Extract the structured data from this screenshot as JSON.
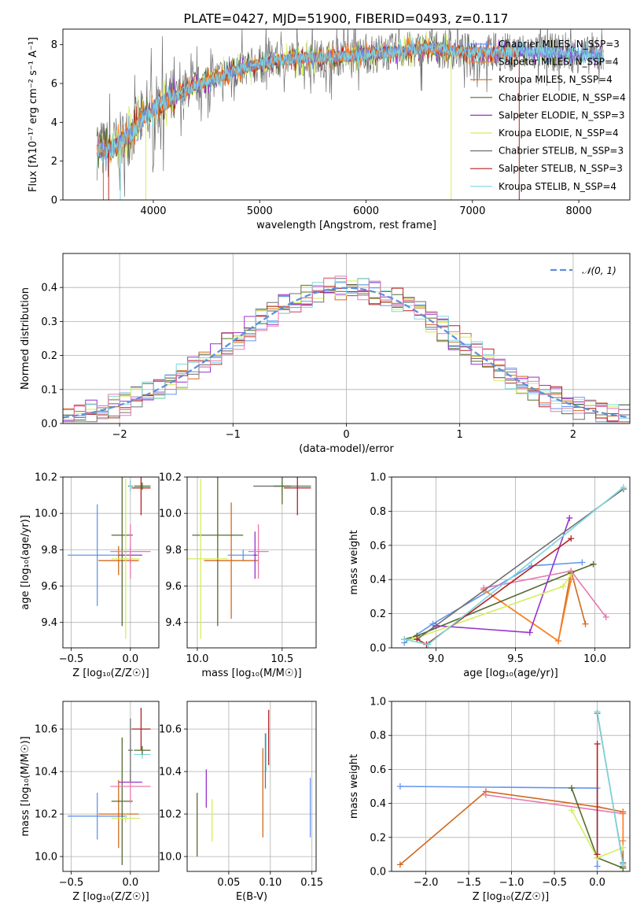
{
  "title": "PLATE=0427, MJD=51900, FIBERID=0493, z=0.117",
  "colors": {
    "chabrier_miles": "#6495ED",
    "salpeter_miles": "#FF7F24",
    "kroupa_miles": "#D2691E",
    "chabrier_elodie": "#556B2F",
    "salpeter_elodie": "#9932CC",
    "kroupa_elodie": "#D4EE5E",
    "chabrier_stelib": "#707070",
    "salpeter_stelib": "#B22222",
    "kroupa_stelib": "#7FD7DF",
    "extra_pink": "#E879B0",
    "normal": "#5B8FDB",
    "grid": "#B0B0B0"
  },
  "chart_data": [
    {
      "type": "line",
      "xlabel": "wavelength [Angstrom, rest frame]",
      "ylabel": "Flux [fλ10⁻¹⁷ erg cm⁻² s⁻¹ A⁻¹]",
      "xlim": [
        3150,
        8480
      ],
      "ylim": [
        0,
        8.8
      ],
      "xticks": [
        "4000",
        "5000",
        "6000",
        "7000",
        "8000"
      ],
      "yticks": [
        "0",
        "2",
        "4",
        "6",
        "8"
      ],
      "grid": false,
      "legend_position": "top-right",
      "legend": [
        "Chabrier MILES, N_SSP=3",
        "Salpeter MILES, N_SSP=4",
        "Kroupa MILES, N_SSP=4",
        "Chabrier ELODIE, N_SSP=4",
        "Salpeter ELODIE, N_SSP=3",
        "Kroupa ELODIE, N_SSP=4",
        "Chabrier STELIB, N_SSP=3",
        "Salpeter STELIB, N_SSP=3",
        "Kroupa STELIB, N_SSP=4"
      ],
      "spectrum_x": [
        3470,
        3600,
        3700,
        3800,
        3900,
        4000,
        4200,
        4400,
        4600,
        4800,
        5000,
        5200,
        5400,
        5600,
        5800,
        6000,
        6200,
        6400,
        6600,
        6800,
        7000,
        7200,
        7400,
        7600,
        7800,
        8000,
        8230
      ],
      "spectrum_y": [
        2.6,
        2.6,
        3.0,
        3.5,
        4.2,
        4.7,
        5.3,
        5.9,
        6.3,
        6.7,
        7.0,
        7.2,
        7.3,
        7.3,
        7.4,
        7.5,
        7.6,
        7.7,
        7.8,
        7.7,
        7.6,
        7.6,
        7.65,
        7.6,
        7.6,
        7.5,
        7.4
      ]
    },
    {
      "type": "histogram",
      "xlabel": "(data-model)/error",
      "ylabel": "Normed distribution",
      "xlim": [
        -2.5,
        2.5
      ],
      "ylim": [
        0,
        0.5
      ],
      "xticks": [
        "−2",
        "−1",
        "0",
        "1",
        "2"
      ],
      "yticks": [
        "0.0",
        "0.1",
        "0.2",
        "0.3",
        "0.4"
      ],
      "grid": true,
      "legend": [
        "𝒩(0, 1)"
      ],
      "legend_position": "top-right",
      "bin_width": 0.1,
      "bin_start": -2.5
    },
    {
      "type": "scatter",
      "xlabel": "Z [log₁₀(Z/Z☉)]",
      "ylabel": "age  [log₁₀(age/yr)]",
      "xlim": [
        -0.57,
        0.24
      ],
      "ylim": [
        9.26,
        10.2
      ],
      "xticks": [
        "−0.5",
        "0.0"
      ],
      "yticks": [
        "9.4",
        "9.6",
        "9.8",
        "10.0",
        "10.2"
      ],
      "grid": true,
      "points": [
        {
          "c": "chabrier_miles",
          "x": -0.28,
          "y": 9.77,
          "xerr": 0.25,
          "yerr": 0.28
        },
        {
          "c": "kroupa_miles",
          "x": -0.1,
          "y": 9.74,
          "xerr": 0.17,
          "yerr": 0.08
        },
        {
          "c": "chabrier_elodie",
          "x": -0.07,
          "y": 9.88,
          "xerr": 0.09,
          "yerr": 0.5
        },
        {
          "c": "salpeter_elodie",
          "x": 0.0,
          "y": 9.77,
          "xerr": 0.1,
          "yerr": 0.05
        },
        {
          "c": "kroupa_elodie",
          "x": -0.04,
          "y": 9.75,
          "xerr": 0.12,
          "yerr": 0.44
        },
        {
          "c": "extra_pink",
          "x": 0.0,
          "y": 9.79,
          "xerr": 0.17,
          "yerr": 0.15
        },
        {
          "c": "chabrier_stelib",
          "x": 0.0,
          "y": 10.15,
          "xerr": 0.02,
          "yerr": 0.03
        },
        {
          "c": "salpeter_stelib",
          "x": 0.09,
          "y": 10.14,
          "xerr": 0.08,
          "yerr": 0.15
        },
        {
          "c": "kroupa_stelib",
          "x": 0.0,
          "y": 10.15,
          "xerr": 0.01,
          "yerr": 0.03
        },
        {
          "c": "chabrier_elodie",
          "x": 0.1,
          "y": 10.15,
          "xerr": 0.07,
          "yerr": 0.02
        }
      ]
    },
    {
      "type": "scatter",
      "xlabel": "mass [log₁₀(M/M☉)]",
      "ylabel": "",
      "xlim": [
        9.94,
        10.7
      ],
      "ylim": [
        9.26,
        10.2
      ],
      "xticks": [
        "10.0",
        "10.5"
      ],
      "yticks": [
        "9.4",
        "9.6",
        "9.8",
        "10.0",
        "10.2"
      ],
      "grid": true,
      "points": [
        {
          "c": "chabrier_miles",
          "x": 10.27,
          "y": 9.77,
          "xerr": 0.09,
          "yerr": 0.03
        },
        {
          "c": "kroupa_miles",
          "x": 10.2,
          "y": 9.74,
          "xerr": 0.16,
          "yerr": 0.32
        },
        {
          "c": "chabrier_elodie",
          "x": 10.12,
          "y": 9.88,
          "xerr": 0.15,
          "yerr": 0.5
        },
        {
          "c": "salpeter_elodie",
          "x": 10.34,
          "y": 9.77,
          "xerr": 0.01,
          "yerr": 0.13
        },
        {
          "c": "kroupa_elodie",
          "x": 10.02,
          "y": 9.75,
          "xerr": 0.16,
          "yerr": 0.44
        },
        {
          "c": "extra_pink",
          "x": 10.36,
          "y": 9.79,
          "xerr": 0.06,
          "yerr": 0.15
        },
        {
          "c": "chabrier_stelib",
          "x": 10.5,
          "y": 10.15,
          "xerr": 0.17,
          "yerr": 0.02
        },
        {
          "c": "salpeter_stelib",
          "x": 10.59,
          "y": 10.14,
          "xerr": 0.08,
          "yerr": 0.15
        },
        {
          "c": "kroupa_stelib",
          "x": 10.5,
          "y": 10.15,
          "xerr": 0.02,
          "yerr": 0.04
        },
        {
          "c": "chabrier_elodie",
          "x": 10.5,
          "y": 10.15,
          "xerr": 0.05,
          "yerr": 0.1
        }
      ]
    },
    {
      "type": "line",
      "xlabel": "age  [log₁₀(age/yr)]",
      "ylabel": "mass weight",
      "xlim": [
        8.72,
        10.22
      ],
      "ylim": [
        0,
        1
      ],
      "xticks": [
        "9.0",
        "9.5",
        "10.0"
      ],
      "yticks": [
        "0.0",
        "0.2",
        "0.4",
        "0.6",
        "0.8",
        "1.0"
      ],
      "grid": true,
      "series": [
        {
          "c": "chabrier_miles",
          "x": [
            8.8,
            8.98,
            9.6,
            9.92
          ],
          "y": [
            0.03,
            0.14,
            0.48,
            0.5
          ]
        },
        {
          "c": "kroupa_miles",
          "x": [
            9.3,
            9.77,
            9.85,
            9.94
          ],
          "y": [
            0.34,
            0.04,
            0.45,
            0.14
          ]
        },
        {
          "c": "salpeter_miles",
          "x": [
            9.3,
            9.77,
            9.85
          ],
          "y": [
            0.34,
            0.04,
            0.4
          ]
        },
        {
          "c": "chabrier_elodie",
          "x": [
            8.8,
            8.88,
            9.85,
            9.99
          ],
          "y": [
            0.05,
            0.07,
            0.44,
            0.49
          ]
        },
        {
          "c": "salpeter_elodie",
          "x": [
            8.88,
            9.0,
            9.59,
            9.84
          ],
          "y": [
            0.05,
            0.13,
            0.09,
            0.76
          ]
        },
        {
          "c": "kroupa_elodie",
          "x": [
            8.85,
            9.8,
            9.85
          ],
          "y": [
            0.05,
            0.36,
            0.43
          ]
        },
        {
          "c": "extra_pink",
          "x": [
            9.3,
            9.85,
            10.07
          ],
          "y": [
            0.35,
            0.45,
            0.18
          ]
        },
        {
          "c": "chabrier_stelib",
          "x": [
            8.88,
            10.18
          ],
          "y": [
            0.05,
            0.93
          ]
        },
        {
          "c": "salpeter_stelib",
          "x": [
            8.88,
            8.94,
            9.85
          ],
          "y": [
            0.05,
            0.02,
            0.64
          ]
        },
        {
          "c": "kroupa_stelib",
          "x": [
            8.8,
            8.95,
            10.18
          ],
          "y": [
            0.05,
            0.02,
            0.94
          ]
        }
      ]
    },
    {
      "type": "scatter",
      "xlabel": "Z [log₁₀(Z/Z☉)]",
      "ylabel": "mass [log₁₀(M/M☉)]",
      "xlim": [
        -0.57,
        0.24
      ],
      "ylim": [
        9.93,
        10.73
      ],
      "xticks": [
        "−0.5",
        "0.0"
      ],
      "yticks": [
        "10.0",
        "10.2",
        "10.4",
        "10.6"
      ],
      "grid": true,
      "points": [
        {
          "c": "chabrier_miles",
          "x": -0.28,
          "y": 10.19,
          "xerr": 0.25,
          "yerr": 0.11
        },
        {
          "c": "kroupa_miles",
          "x": -0.1,
          "y": 10.2,
          "xerr": 0.17,
          "yerr": 0.16
        },
        {
          "c": "chabrier_elodie",
          "x": -0.07,
          "y": 10.26,
          "xerr": 0.09,
          "yerr": 0.3
        },
        {
          "c": "salpeter_elodie",
          "x": 0.0,
          "y": 10.35,
          "xerr": 0.1,
          "yerr": 0.01
        },
        {
          "c": "kroupa_elodie",
          "x": -0.04,
          "y": 10.18,
          "xerr": 0.12,
          "yerr": 0.02
        },
        {
          "c": "extra_pink",
          "x": 0.0,
          "y": 10.33,
          "xerr": 0.17,
          "yerr": 0.08
        },
        {
          "c": "chabrier_stelib",
          "x": 0.0,
          "y": 10.5,
          "xerr": 0.02,
          "yerr": 0.15
        },
        {
          "c": "salpeter_stelib",
          "x": 0.09,
          "y": 10.6,
          "xerr": 0.08,
          "yerr": 0.1
        },
        {
          "c": "kroupa_stelib",
          "x": 0.1,
          "y": 10.48,
          "xerr": 0.07,
          "yerr": 0.02
        },
        {
          "c": "chabrier_elodie",
          "x": 0.1,
          "y": 10.5,
          "xerr": 0.07,
          "yerr": 0.02
        }
      ]
    },
    {
      "type": "scatter",
      "xlabel": "E(B-V)",
      "ylabel": "",
      "xlim": [
        0.0,
        0.155
      ],
      "ylim": [
        9.93,
        10.73
      ],
      "xticks": [
        "0.05",
        "0.10",
        "0.15"
      ],
      "yticks": [
        "10.0",
        "10.2",
        "10.4",
        "10.6"
      ],
      "grid": true,
      "points": [
        {
          "c": "chabrier_elodie",
          "x": 0.012,
          "y": 10.15,
          "yerr": 0.15
        },
        {
          "c": "salpeter_elodie",
          "x": 0.023,
          "y": 10.32,
          "yerr": 0.09
        },
        {
          "c": "kroupa_elodie",
          "x": 0.03,
          "y": 10.17,
          "yerr": 0.1
        },
        {
          "c": "kroupa_miles",
          "x": 0.091,
          "y": 10.3,
          "yerr": 0.21
        },
        {
          "c": "chabrier_stelib",
          "x": 0.094,
          "y": 10.45,
          "yerr": 0.13
        },
        {
          "c": "kroupa_stelib",
          "x": 0.095,
          "y": 10.49,
          "yerr": 0.09
        },
        {
          "c": "salpeter_stelib",
          "x": 0.098,
          "y": 10.56,
          "yerr": 0.13
        },
        {
          "c": "chabrier_miles",
          "x": 0.148,
          "y": 10.23,
          "yerr": 0.14
        }
      ]
    },
    {
      "type": "line",
      "xlabel": "Z [log₁₀(Z/Z☉)]",
      "ylabel": "mass weight",
      "xlim": [
        -2.4,
        0.38
      ],
      "ylim": [
        0,
        1
      ],
      "xticks": [
        "−2.0",
        "−1.5",
        "−1.0",
        "−0.5",
        "0.0"
      ],
      "yticks": [
        "0.0",
        "0.2",
        "0.4",
        "0.6",
        "0.8",
        "1.0"
      ],
      "grid": true,
      "series": [
        {
          "c": "chabrier_miles",
          "x": [
            -2.3,
            0.0,
            0.0
          ],
          "y": [
            0.5,
            0.49,
            0.03
          ]
        },
        {
          "c": "kroupa_miles",
          "x": [
            -2.3,
            -1.3,
            0.0,
            0.3,
            0.3
          ],
          "y": [
            0.04,
            0.47,
            0.38,
            0.35,
            0.03
          ]
        },
        {
          "c": "extra_pink",
          "x": [
            -1.3,
            0.0,
            0.3
          ],
          "y": [
            0.45,
            0.36,
            0.34
          ]
        },
        {
          "c": "chabrier_elodie",
          "x": [
            -0.3,
            0.0,
            0.3
          ],
          "y": [
            0.49,
            0.08,
            0.02
          ]
        },
        {
          "c": "kroupa_elodie",
          "x": [
            -0.3,
            0.0,
            0.3
          ],
          "y": [
            0.36,
            0.08,
            0.14
          ]
        },
        {
          "c": "salpeter_miles",
          "x": [
            0.3,
            0.3
          ],
          "y": [
            0.34,
            0.18
          ]
        },
        {
          "c": "chabrier_stelib",
          "x": [
            0.0,
            0.3
          ],
          "y": [
            0.93,
            0.05
          ]
        },
        {
          "c": "kroupa_stelib",
          "x": [
            0.0,
            0.3
          ],
          "y": [
            0.94,
            0.04
          ]
        },
        {
          "c": "salpeter_stelib",
          "x": [
            0.0,
            0.0
          ],
          "y": [
            0.75,
            0.1
          ]
        }
      ]
    }
  ]
}
